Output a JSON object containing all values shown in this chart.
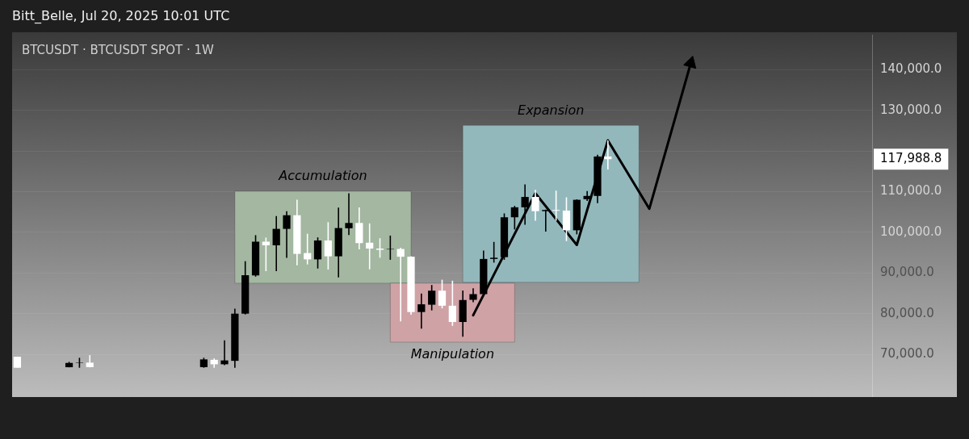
{
  "chart_data": {
    "type": "candlestick",
    "title": "BTCUSDT · BTCUSDT SPOT · 1W",
    "subtitle": "Bitt_Belle, Jul 20, 2025 10:01 UTC",
    "categories": [
      null,
      null,
      null,
      null,
      null,
      null,
      null,
      null,
      null,
      null,
      null,
      null,
      null,
      null,
      null,
      null,
      null,
      null,
      null,
      null,
      null,
      null,
      null,
      null,
      null,
      null,
      null,
      null,
      null,
      null,
      null,
      null,
      null,
      null,
      null,
      null,
      null,
      null,
      null,
      null,
      null,
      null,
      null,
      null,
      null,
      null,
      null,
      null,
      null,
      null,
      null,
      null,
      null,
      null,
      null,
      null,
      null,
      null,
      null,
      null,
      null,
      null,
      null,
      null,
      null,
      null,
      null,
      null,
      null,
      null,
      null,
      null,
      null,
      null,
      null,
      null,
      null,
      null,
      null,
      null,
      null,
      null,
      null
    ],
    "ylim": [
      58700,
      148600
    ],
    "yticks": [
      {
        "value": 70000,
        "label": "70,000.0"
      },
      {
        "value": 80000,
        "label": "80,000.0"
      },
      {
        "value": 90000,
        "label": "90,000.0"
      },
      {
        "value": 100000,
        "label": "100,000.0"
      },
      {
        "value": 110000,
        "label": "110,000.0"
      },
      {
        "value": 120000,
        "label": null
      },
      {
        "value": 130000,
        "label": "130,000.0"
      },
      {
        "value": 140000,
        "label": "140,000.0"
      }
    ],
    "grid": "y",
    "annotations": [
      "117,988.8"
    ],
    "bands": [
      {
        "axis": "y",
        "from": 87500,
        "to": 110100,
        "label": "Accumulation",
        "color": "#a3b7a1"
      },
      {
        "axis": "y",
        "from": 73000,
        "to": 87500,
        "label": "Manipulation",
        "color": "#cfa2a6"
      },
      {
        "axis": "y",
        "from": 87700,
        "to": 126300,
        "label": "Expansion",
        "color": "#93b8bc"
      }
    ],
    "series": [
      {
        "type": "candlestick",
        "ohlc": [
          [
            69400,
            69400,
            66700,
            66700
          ],
          null,
          null,
          null,
          null,
          [
            66830,
            68150,
            66800,
            67880
          ],
          [
            67900,
            69150,
            66700,
            68000
          ],
          [
            67950,
            69800,
            66800,
            66850
          ],
          null,
          null,
          null,
          null,
          null,
          null,
          null,
          null,
          null,
          null,
          [
            66850,
            69150,
            66700,
            68750
          ],
          [
            68650,
            69000,
            66700,
            67550
          ],
          [
            67550,
            73450,
            67350,
            68500
          ],
          [
            68400,
            81200,
            66700,
            80000
          ],
          [
            80000,
            92900,
            79800,
            89450
          ],
          [
            89400,
            99300,
            89100,
            97700
          ],
          [
            97700,
            98700,
            90450,
            96800
          ],
          [
            96800,
            104000,
            90450,
            100850
          ],
          [
            100850,
            105200,
            93750,
            104200
          ],
          [
            104200,
            108000,
            91900,
            94700
          ],
          [
            94900,
            99650,
            92100,
            93350
          ],
          [
            93350,
            98750,
            91100,
            98000
          ],
          [
            98000,
            102500,
            90850,
            94100
          ],
          [
            94100,
            106100,
            88900,
            101050
          ],
          [
            101000,
            109600,
            99350,
            102300
          ],
          [
            102300,
            106150,
            95800,
            97350
          ],
          [
            97450,
            102200,
            90900,
            96000
          ],
          [
            96000,
            98550,
            93750,
            95700
          ],
          [
            95800,
            99200,
            93250,
            95900
          ],
          [
            95900,
            96200,
            78100,
            94000
          ],
          [
            94000,
            94100,
            79750,
            80400
          ],
          [
            80400,
            84950,
            76300,
            82300
          ],
          [
            82200,
            87050,
            80800,
            85650
          ],
          [
            85650,
            88350,
            81300,
            81950
          ],
          [
            81950,
            88100,
            77000,
            77950
          ],
          [
            77950,
            85700,
            74350,
            83350
          ],
          [
            83400,
            86250,
            82800,
            84800
          ],
          [
            84800,
            95500,
            84600,
            93450
          ],
          [
            93450,
            97650,
            92550,
            93750
          ],
          [
            93900,
            104650,
            93250,
            103700
          ],
          [
            103700,
            106500,
            100700,
            106150
          ],
          [
            106150,
            111800,
            101850,
            108700
          ],
          [
            108700,
            110450,
            102850,
            105200
          ],
          [
            105200,
            105600,
            100200,
            105500
          ],
          [
            105500,
            110250,
            102850,
            105300
          ],
          [
            105350,
            108600,
            97850,
            100500
          ],
          [
            100500,
            108100,
            99500,
            108000
          ],
          [
            108150,
            110150,
            107700,
            108950
          ],
          [
            108950,
            119100,
            107150,
            118650
          ],
          [
            118650,
            122600,
            115450,
            117988.8
          ],
          null,
          null,
          null,
          null,
          null,
          null,
          null,
          null,
          null,
          null,
          null,
          null,
          null,
          null,
          null,
          null,
          null,
          null,
          null,
          null,
          null,
          null,
          null,
          null,
          null
        ],
        "colors": [
          "#ffffff",
          null,
          null,
          null,
          null,
          "#000000",
          "#000000",
          "#ffffff",
          null,
          null,
          null,
          null,
          null,
          null,
          null,
          null,
          null,
          null,
          "#000000",
          "#ffffff",
          "#000000",
          "#000000",
          "#000000",
          "#000000",
          "#ffffff",
          "#000000",
          "#000000",
          "#ffffff",
          "#ffffff",
          "#000000",
          "#ffffff",
          "#000000",
          "#000000",
          "#ffffff",
          "#ffffff",
          "#ffffff",
          "#000000",
          "#ffffff",
          "#ffffff",
          "#000000",
          "#000000",
          "#ffffff",
          "#ffffff",
          "#000000",
          "#000000",
          "#000000",
          "#000000",
          "#000000",
          "#000000",
          "#000000",
          "#ffffff",
          "#000000",
          "#ffffff",
          "#ffffff",
          "#000000",
          "#000000",
          "#000000",
          "#ffffff",
          null,
          null,
          null,
          null,
          null,
          null,
          null,
          null,
          null,
          null,
          null,
          null,
          null,
          null,
          null,
          null,
          null,
          null,
          null,
          null,
          null,
          null,
          null,
          null,
          null
        ]
      },
      {
        "type": "line",
        "color": "#000000",
        "values": [
          null,
          null,
          null,
          null,
          null,
          null,
          null,
          null,
          null,
          null,
          null,
          null,
          null,
          null,
          null,
          null,
          null,
          null,
          null,
          null,
          null,
          null,
          null,
          null,
          null,
          null,
          null,
          null,
          null,
          null,
          null,
          null,
          null,
          null,
          null,
          null,
          null,
          null,
          null,
          null,
          null,
          null,
          null,
          null,
          79600,
          null,
          null,
          null,
          null,
          null,
          109600,
          null,
          null,
          null,
          96900,
          null,
          null,
          122600,
          null,
          null,
          null,
          105800,
          null,
          null,
          null,
          141600,
          null,
          null,
          null,
          null,
          null,
          null,
          null,
          null,
          null,
          null,
          null,
          null,
          null,
          null,
          null,
          null,
          null
        ]
      }
    ]
  }
}
